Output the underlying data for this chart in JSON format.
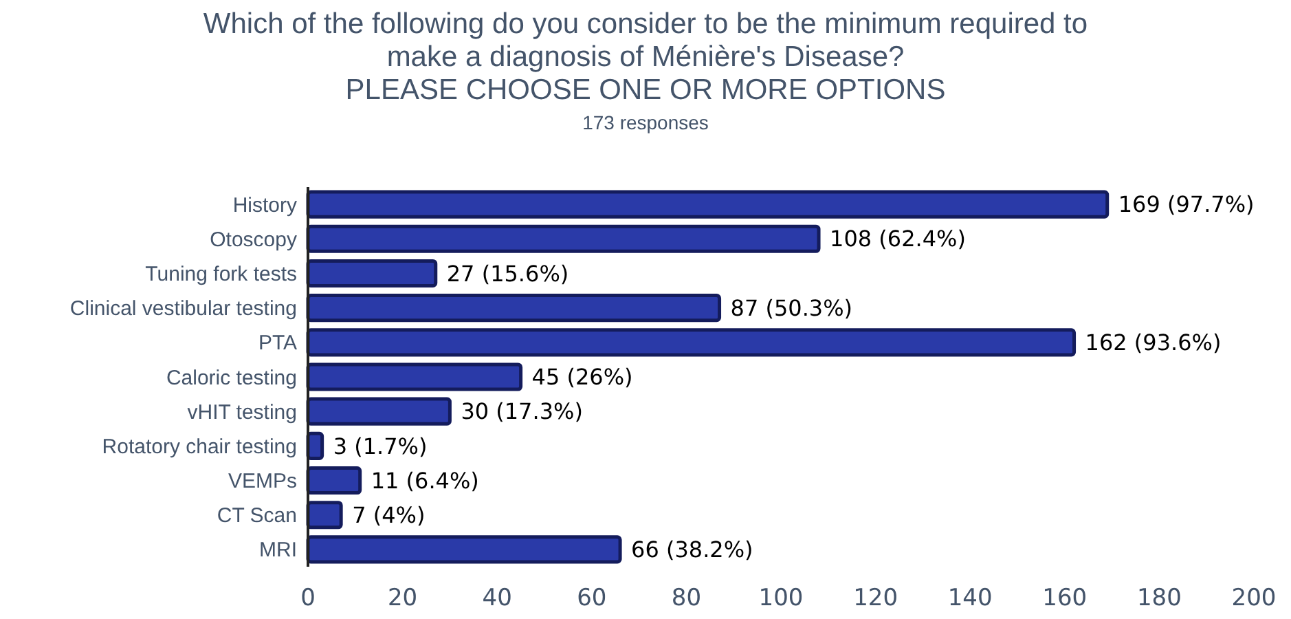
{
  "chart_data": {
    "type": "bar",
    "orientation": "horizontal",
    "title": "Which of the following do you consider to be the minimum required to make a diagnosis of Ménière's Disease?",
    "subtitle": "PLEASE CHOOSE ONE OR MORE OPTIONS",
    "annotations": [
      "173 responses"
    ],
    "categories": [
      "History",
      "Otoscopy",
      "Tuning fork tests",
      "Clinical vestibular testing",
      "PTA",
      "Caloric testing",
      "vHIT testing",
      "Rotatory chair testing",
      "VEMPs",
      "CT Scan",
      "MRI"
    ],
    "values": [
      169,
      108,
      27,
      87,
      162,
      45,
      30,
      3,
      11,
      7,
      66
    ],
    "value_labels": [
      "169 (97.7%)",
      "108 (62.4%)",
      "27 (15.6%)",
      "87 (50.3%)",
      "162 (93.6%)",
      "45 (26%)",
      "30 (17.3%)",
      "3 (1.7%)",
      "11 (6.4%)",
      "7 (4%)",
      "66 (38.2%)"
    ],
    "color": "#2a3aa8",
    "xlim": [
      0,
      200
    ],
    "xticks": [
      0,
      20,
      40,
      60,
      80,
      100,
      120,
      140,
      160,
      180,
      200
    ],
    "grid": false
  }
}
